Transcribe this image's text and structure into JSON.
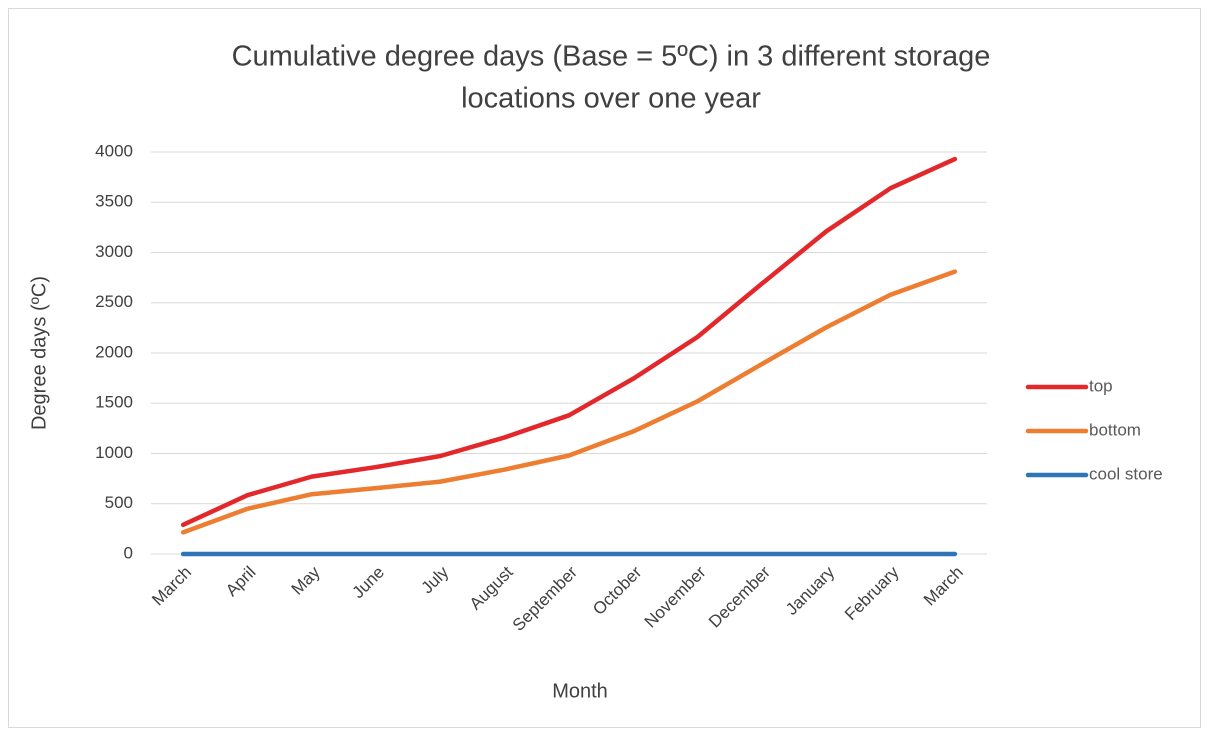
{
  "chart_data": {
    "type": "line",
    "title": [
      "Cumulative degree days (Base = 5ºC) in 3 different storage",
      "locations over one year"
    ],
    "x_label": "Month",
    "y_label": "Degree days (ºC)",
    "categories": [
      "March",
      "April",
      "May",
      "June",
      "July",
      "August",
      "September",
      "October",
      "November",
      "December",
      "January",
      "February",
      "March"
    ],
    "series": [
      {
        "name": "top",
        "color": "#e2282b",
        "values": [
          290,
          585,
          770,
          865,
          975,
          1160,
          1380,
          1745,
          2160,
          2690,
          3210,
          3640,
          3930
        ]
      },
      {
        "name": "bottom",
        "color": "#ed7d31",
        "values": [
          215,
          450,
          595,
          655,
          720,
          840,
          980,
          1220,
          1520,
          1890,
          2255,
          2580,
          2810
        ]
      },
      {
        "name": "cool store",
        "color": "#2e75b6",
        "values": [
          0,
          0,
          0,
          0,
          0,
          0,
          0,
          0,
          0,
          0,
          0,
          0,
          0
        ]
      }
    ],
    "ylim": [
      0,
      4000
    ],
    "yticks": [
      0,
      500,
      1000,
      1500,
      2000,
      2500,
      3000,
      3500,
      4000
    ],
    "grid": true,
    "legend": "right"
  }
}
